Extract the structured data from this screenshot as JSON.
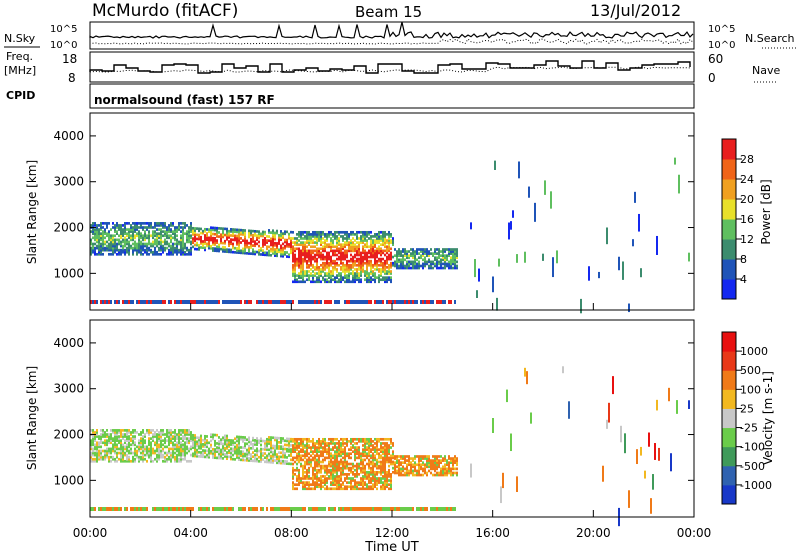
{
  "header": {
    "title": "McMurdo (fitACF)",
    "beam": "Beam 15",
    "date": "13/Jul/2012"
  },
  "params": {
    "nsky_label": "N.Sky",
    "nsearch_label": "N.Search",
    "freq_label_1": "Freq.",
    "freq_label_2": "[MHz]",
    "nave_label": "Nave",
    "cpid_label": "CPID",
    "cpid_text": "normalsound (fast) 157 RF",
    "noise_ticks_left": [
      "10^5",
      "10^0"
    ],
    "noise_ticks_right": [
      "10^5",
      "10^0"
    ],
    "freq_ticks": [
      "18",
      "8"
    ],
    "nave_ticks": [
      "60",
      "0"
    ]
  },
  "chart_data": [
    {
      "type": "heatmap",
      "name": "power",
      "ylabel": "Slant Range [km]",
      "ylim": [
        200,
        4500
      ],
      "yticks": [
        1000,
        2000,
        3000,
        4000
      ],
      "xlim": [
        0,
        24
      ],
      "colorbar": {
        "label": "Power [dB]",
        "ticks": [
          "4",
          "8",
          "12",
          "16",
          "20",
          "24",
          "28"
        ],
        "colors": [
          "#1428f0",
          "#1f54b8",
          "#3c8c6e",
          "#5fbf5f",
          "#e8e02a",
          "#f0a020",
          "#f06418",
          "#e81e1e"
        ]
      }
    },
    {
      "type": "heatmap",
      "name": "velocity",
      "ylabel": "Slant Range [km]",
      "ylim": [
        200,
        4500
      ],
      "yticks": [
        1000,
        2000,
        3000,
        4000
      ],
      "xlim": [
        0,
        24
      ],
      "xlabel": "Time UT",
      "xticks": [
        "00:00",
        "04:00",
        "08:00",
        "12:00",
        "16:00",
        "20:00",
        "00:00"
      ],
      "colorbar": {
        "label": "Velocity [m s-1]",
        "ticks": [
          "1000",
          "500",
          "100",
          "25",
          "-25",
          "-100",
          "-500",
          "-1000"
        ],
        "colors": [
          "#1838c8",
          "#2f62b0",
          "#3f9a5a",
          "#6acc4a",
          "#c8c8c8",
          "#f2b820",
          "#f07a18",
          "#e83818",
          "#e81010"
        ]
      }
    }
  ]
}
